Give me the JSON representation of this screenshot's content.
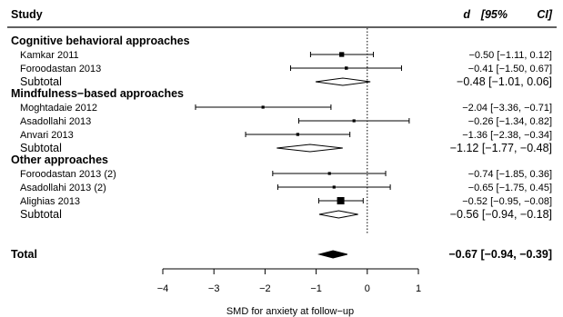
{
  "chart_data": {
    "type": "forest",
    "header": {
      "study": "Study",
      "effect": "d",
      "ci_open": "[95%",
      "ci_close": "CI]"
    },
    "xlabel": "SMD for anxiety at follow−up",
    "xlim": [
      -4,
      1
    ],
    "xticks": [
      "−4",
      "−3",
      "−2",
      "−1",
      "0",
      "1"
    ],
    "xtick_values": [
      -4,
      -3,
      -2,
      -1,
      0,
      1
    ],
    "reference_line": 0,
    "groups": [
      {
        "name": "Cognitive behavioral approaches",
        "studies": [
          {
            "label": "Kamkar 2011",
            "d": -0.5,
            "lo": -1.11,
            "hi": 0.12,
            "text": "−0.50 [−1.11,  0.12]",
            "weight": 0.55
          },
          {
            "label": "Foroodastan 2013",
            "d": -0.41,
            "lo": -1.5,
            "hi": 0.67,
            "text": "−0.41 [−1.50,  0.67]",
            "weight": 0.25
          }
        ],
        "subtotal": {
          "label": "Subtotal",
          "d": -0.48,
          "lo": -1.01,
          "hi": 0.06,
          "text": "−0.48 [−1.01,  0.06]"
        }
      },
      {
        "name": "Mindfulness−based approaches",
        "studies": [
          {
            "label": "Moghtadaie 2012",
            "d": -2.04,
            "lo": -3.36,
            "hi": -0.71,
            "text": "−2.04 [−3.36, −0.71]",
            "weight": 0.2
          },
          {
            "label": "Asadollahi 2013",
            "d": -0.26,
            "lo": -1.34,
            "hi": 0.82,
            "text": "−0.26 [−1.34,  0.82]",
            "weight": 0.2
          },
          {
            "label": "Anvari 2013",
            "d": -1.36,
            "lo": -2.38,
            "hi": -0.34,
            "text": "−1.36 [−2.38, −0.34]",
            "weight": 0.22
          }
        ],
        "subtotal": {
          "label": "Subtotal",
          "d": -1.12,
          "lo": -1.77,
          "hi": -0.48,
          "text": "−1.12 [−1.77, −0.48]"
        }
      },
      {
        "name": "Other approaches",
        "studies": [
          {
            "label": "Foroodastan 2013 (2)",
            "d": -0.74,
            "lo": -1.85,
            "hi": 0.36,
            "text": "−0.74 [−1.85,  0.36]",
            "weight": 0.2
          },
          {
            "label": "Asadollahi 2013 (2)",
            "d": -0.65,
            "lo": -1.75,
            "hi": 0.45,
            "text": "−0.65 [−1.75,  0.45]",
            "weight": 0.2
          },
          {
            "label": "Alighias 2013",
            "d": -0.52,
            "lo": -0.95,
            "hi": -0.08,
            "text": "−0.52 [−0.95, −0.08]",
            "weight": 1.0
          }
        ],
        "subtotal": {
          "label": "Subtotal",
          "d": -0.56,
          "lo": -0.94,
          "hi": -0.18,
          "text": "−0.56 [−0.94, −0.18]"
        }
      }
    ],
    "total": {
      "label": "Total",
      "d": -0.67,
      "lo": -0.94,
      "hi": -0.39,
      "text": "−0.67 [−0.94, −0.39]"
    }
  }
}
